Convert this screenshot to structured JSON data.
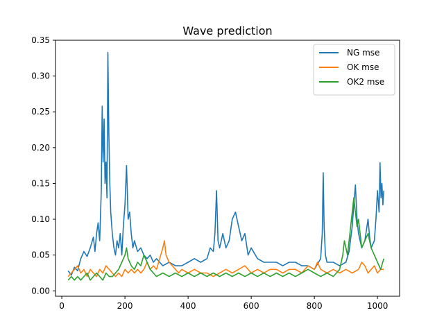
{
  "chart_data": {
    "type": "line",
    "title": "Wave prediction",
    "xlabel": "",
    "ylabel": "",
    "xlim": [
      -20,
      1070
    ],
    "ylim": [
      -0.0075,
      0.35
    ],
    "x_ticks": [
      0,
      200,
      400,
      600,
      800,
      1000
    ],
    "x_tick_labels": [
      "0",
      "200",
      "400",
      "600",
      "800",
      "1000"
    ],
    "y_ticks": [
      0.0,
      0.05,
      0.1,
      0.15,
      0.2,
      0.25,
      0.3,
      0.35
    ],
    "y_tick_labels": [
      "0.00",
      "0.05",
      "0.10",
      "0.15",
      "0.20",
      "0.25",
      "0.30",
      "0.35"
    ],
    "grid": false,
    "legend_position": "top-right",
    "series": [
      {
        "name": "NG mse",
        "color": "#1f77b4",
        "points": [
          [
            20,
            0.028
          ],
          [
            30,
            0.022
          ],
          [
            40,
            0.033
          ],
          [
            50,
            0.028
          ],
          [
            60,
            0.045
          ],
          [
            70,
            0.055
          ],
          [
            80,
            0.048
          ],
          [
            90,
            0.06
          ],
          [
            100,
            0.075
          ],
          [
            105,
            0.055
          ],
          [
            110,
            0.08
          ],
          [
            115,
            0.095
          ],
          [
            120,
            0.07
          ],
          [
            125,
            0.14
          ],
          [
            128,
            0.258
          ],
          [
            131,
            0.18
          ],
          [
            134,
            0.24
          ],
          [
            137,
            0.15
          ],
          [
            140,
            0.18
          ],
          [
            143,
            0.13
          ],
          [
            146,
            0.333
          ],
          [
            149,
            0.22
          ],
          [
            152,
            0.15
          ],
          [
            155,
            0.11
          ],
          [
            160,
            0.08
          ],
          [
            165,
            0.06
          ],
          [
            170,
            0.05
          ],
          [
            175,
            0.07
          ],
          [
            180,
            0.06
          ],
          [
            185,
            0.08
          ],
          [
            190,
            0.05
          ],
          [
            195,
            0.09
          ],
          [
            200,
            0.12
          ],
          [
            205,
            0.175
          ],
          [
            210,
            0.1
          ],
          [
            215,
            0.11
          ],
          [
            220,
            0.08
          ],
          [
            225,
            0.06
          ],
          [
            230,
            0.07
          ],
          [
            240,
            0.055
          ],
          [
            250,
            0.06
          ],
          [
            260,
            0.05
          ],
          [
            270,
            0.045
          ],
          [
            280,
            0.05
          ],
          [
            290,
            0.04
          ],
          [
            300,
            0.045
          ],
          [
            320,
            0.035
          ],
          [
            340,
            0.04
          ],
          [
            360,
            0.035
          ],
          [
            380,
            0.035
          ],
          [
            400,
            0.04
          ],
          [
            420,
            0.045
          ],
          [
            440,
            0.04
          ],
          [
            460,
            0.045
          ],
          [
            470,
            0.06
          ],
          [
            480,
            0.055
          ],
          [
            485,
            0.08
          ],
          [
            490,
            0.14
          ],
          [
            495,
            0.07
          ],
          [
            500,
            0.06
          ],
          [
            510,
            0.08
          ],
          [
            520,
            0.06
          ],
          [
            530,
            0.07
          ],
          [
            540,
            0.1
          ],
          [
            550,
            0.11
          ],
          [
            560,
            0.09
          ],
          [
            570,
            0.07
          ],
          [
            580,
            0.08
          ],
          [
            590,
            0.05
          ],
          [
            600,
            0.06
          ],
          [
            620,
            0.045
          ],
          [
            640,
            0.04
          ],
          [
            660,
            0.04
          ],
          [
            680,
            0.04
          ],
          [
            700,
            0.035
          ],
          [
            720,
            0.04
          ],
          [
            740,
            0.04
          ],
          [
            760,
            0.035
          ],
          [
            780,
            0.035
          ],
          [
            800,
            0.03
          ],
          [
            820,
            0.045
          ],
          [
            825,
            0.08
          ],
          [
            828,
            0.165
          ],
          [
            831,
            0.09
          ],
          [
            835,
            0.05
          ],
          [
            840,
            0.04
          ],
          [
            860,
            0.04
          ],
          [
            880,
            0.035
          ],
          [
            900,
            0.04
          ],
          [
            910,
            0.055
          ],
          [
            920,
            0.09
          ],
          [
            925,
            0.12
          ],
          [
            930,
            0.148
          ],
          [
            935,
            0.1
          ],
          [
            940,
            0.08
          ],
          [
            950,
            0.06
          ],
          [
            960,
            0.07
          ],
          [
            970,
            0.1
          ],
          [
            975,
            0.075
          ],
          [
            980,
            0.06
          ],
          [
            990,
            0.07
          ],
          [
            995,
            0.1
          ],
          [
            1000,
            0.14
          ],
          [
            1005,
            0.11
          ],
          [
            1008,
            0.179
          ],
          [
            1011,
            0.13
          ],
          [
            1014,
            0.15
          ],
          [
            1017,
            0.12
          ],
          [
            1020,
            0.14
          ]
        ]
      },
      {
        "name": "OK mse",
        "color": "#ff7f0e",
        "points": [
          [
            20,
            0.02
          ],
          [
            30,
            0.025
          ],
          [
            40,
            0.03
          ],
          [
            50,
            0.035
          ],
          [
            60,
            0.025
          ],
          [
            70,
            0.03
          ],
          [
            80,
            0.02
          ],
          [
            90,
            0.03
          ],
          [
            100,
            0.025
          ],
          [
            110,
            0.02
          ],
          [
            120,
            0.03
          ],
          [
            130,
            0.025
          ],
          [
            140,
            0.035
          ],
          [
            150,
            0.03
          ],
          [
            160,
            0.025
          ],
          [
            170,
            0.02
          ],
          [
            180,
            0.025
          ],
          [
            190,
            0.02
          ],
          [
            200,
            0.03
          ],
          [
            210,
            0.025
          ],
          [
            220,
            0.03
          ],
          [
            230,
            0.025
          ],
          [
            240,
            0.03
          ],
          [
            250,
            0.025
          ],
          [
            260,
            0.03
          ],
          [
            270,
            0.04
          ],
          [
            280,
            0.03
          ],
          [
            290,
            0.035
          ],
          [
            300,
            0.03
          ],
          [
            310,
            0.045
          ],
          [
            320,
            0.06
          ],
          [
            325,
            0.07
          ],
          [
            330,
            0.05
          ],
          [
            340,
            0.04
          ],
          [
            350,
            0.035
          ],
          [
            360,
            0.03
          ],
          [
            370,
            0.025
          ],
          [
            380,
            0.03
          ],
          [
            400,
            0.025
          ],
          [
            420,
            0.03
          ],
          [
            440,
            0.025
          ],
          [
            460,
            0.025
          ],
          [
            480,
            0.02
          ],
          [
            500,
            0.025
          ],
          [
            520,
            0.03
          ],
          [
            540,
            0.025
          ],
          [
            560,
            0.03
          ],
          [
            580,
            0.035
          ],
          [
            600,
            0.025
          ],
          [
            620,
            0.03
          ],
          [
            640,
            0.025
          ],
          [
            660,
            0.03
          ],
          [
            680,
            0.03
          ],
          [
            700,
            0.025
          ],
          [
            720,
            0.03
          ],
          [
            740,
            0.03
          ],
          [
            760,
            0.025
          ],
          [
            780,
            0.035
          ],
          [
            800,
            0.03
          ],
          [
            810,
            0.04
          ],
          [
            820,
            0.03
          ],
          [
            840,
            0.025
          ],
          [
            860,
            0.03
          ],
          [
            880,
            0.025
          ],
          [
            900,
            0.03
          ],
          [
            920,
            0.025
          ],
          [
            940,
            0.03
          ],
          [
            950,
            0.04
          ],
          [
            960,
            0.035
          ],
          [
            970,
            0.025
          ],
          [
            980,
            0.03
          ],
          [
            990,
            0.035
          ],
          [
            1000,
            0.025
          ],
          [
            1010,
            0.03
          ],
          [
            1020,
            0.03
          ]
        ]
      },
      {
        "name": "OK2 mse",
        "color": "#2ca02c",
        "points": [
          [
            20,
            0.015
          ],
          [
            30,
            0.02
          ],
          [
            40,
            0.015
          ],
          [
            50,
            0.02
          ],
          [
            60,
            0.015
          ],
          [
            70,
            0.02
          ],
          [
            80,
            0.025
          ],
          [
            90,
            0.015
          ],
          [
            100,
            0.02
          ],
          [
            110,
            0.025
          ],
          [
            120,
            0.02
          ],
          [
            130,
            0.015
          ],
          [
            140,
            0.025
          ],
          [
            150,
            0.02
          ],
          [
            160,
            0.02
          ],
          [
            170,
            0.025
          ],
          [
            180,
            0.03
          ],
          [
            190,
            0.04
          ],
          [
            200,
            0.05
          ],
          [
            205,
            0.06
          ],
          [
            210,
            0.045
          ],
          [
            220,
            0.035
          ],
          [
            230,
            0.03
          ],
          [
            240,
            0.04
          ],
          [
            250,
            0.035
          ],
          [
            260,
            0.05
          ],
          [
            270,
            0.04
          ],
          [
            280,
            0.03
          ],
          [
            290,
            0.025
          ],
          [
            300,
            0.02
          ],
          [
            320,
            0.025
          ],
          [
            340,
            0.02
          ],
          [
            360,
            0.025
          ],
          [
            380,
            0.02
          ],
          [
            400,
            0.025
          ],
          [
            420,
            0.02
          ],
          [
            440,
            0.025
          ],
          [
            460,
            0.02
          ],
          [
            480,
            0.025
          ],
          [
            500,
            0.02
          ],
          [
            520,
            0.025
          ],
          [
            540,
            0.02
          ],
          [
            560,
            0.025
          ],
          [
            580,
            0.02
          ],
          [
            600,
            0.025
          ],
          [
            620,
            0.02
          ],
          [
            640,
            0.025
          ],
          [
            660,
            0.02
          ],
          [
            680,
            0.025
          ],
          [
            700,
            0.02
          ],
          [
            720,
            0.025
          ],
          [
            740,
            0.02
          ],
          [
            760,
            0.025
          ],
          [
            780,
            0.03
          ],
          [
            800,
            0.025
          ],
          [
            820,
            0.02
          ],
          [
            840,
            0.025
          ],
          [
            860,
            0.02
          ],
          [
            870,
            0.025
          ],
          [
            880,
            0.03
          ],
          [
            890,
            0.05
          ],
          [
            895,
            0.07
          ],
          [
            900,
            0.06
          ],
          [
            905,
            0.05
          ],
          [
            910,
            0.07
          ],
          [
            915,
            0.09
          ],
          [
            920,
            0.11
          ],
          [
            925,
            0.13
          ],
          [
            930,
            0.11
          ],
          [
            935,
            0.09
          ],
          [
            940,
            0.1
          ],
          [
            945,
            0.08
          ],
          [
            950,
            0.06
          ],
          [
            960,
            0.07
          ],
          [
            970,
            0.08
          ],
          [
            980,
            0.06
          ],
          [
            990,
            0.05
          ],
          [
            1000,
            0.04
          ],
          [
            1010,
            0.03
          ],
          [
            1020,
            0.045
          ]
        ]
      }
    ]
  }
}
